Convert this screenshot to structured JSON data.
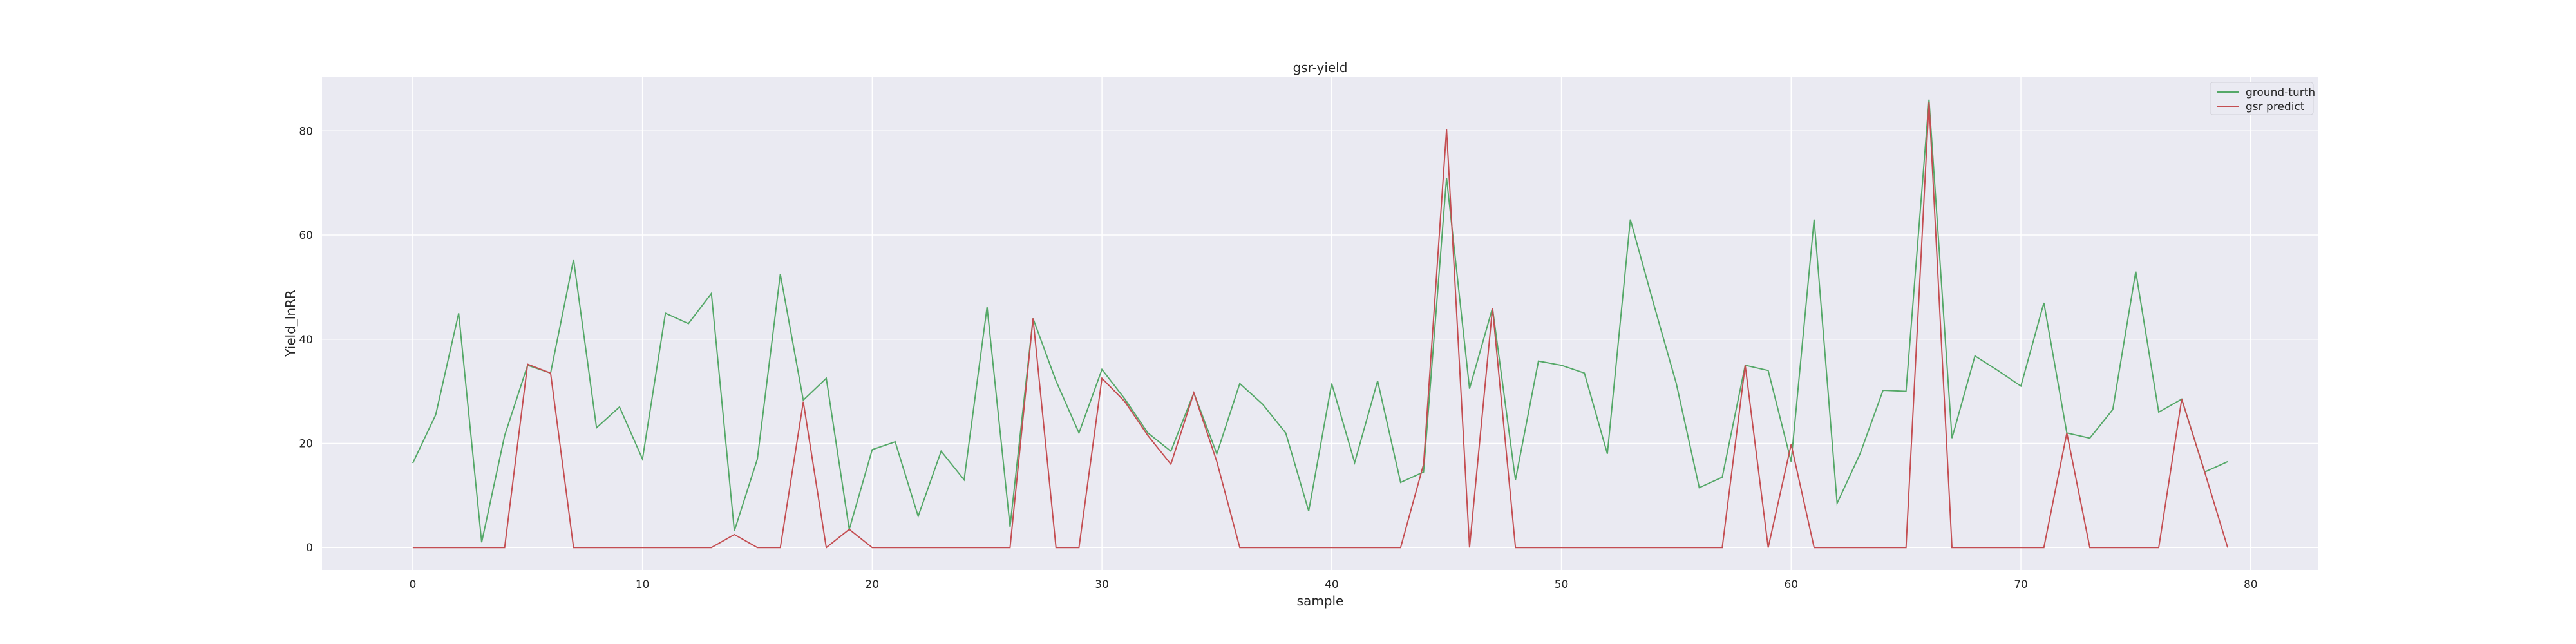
{
  "chart_data": {
    "type": "line",
    "title": "gsr-yield",
    "xlabel": "sample",
    "ylabel": "Yield_lnRR",
    "xlim": [
      -3.95,
      82.95
    ],
    "ylim": [
      -4.3,
      90.3
    ],
    "xticks": [
      0,
      10,
      20,
      30,
      40,
      50,
      60,
      70,
      80
    ],
    "yticks": [
      0,
      20,
      40,
      60,
      80
    ],
    "grid": true,
    "legend": "top-right",
    "background": "#eaeaf2",
    "x": [
      0,
      1,
      2,
      3,
      4,
      5,
      6,
      7,
      8,
      9,
      10,
      11,
      12,
      13,
      14,
      15,
      16,
      17,
      18,
      19,
      20,
      21,
      22,
      23,
      24,
      25,
      26,
      27,
      28,
      29,
      30,
      31,
      32,
      33,
      34,
      35,
      36,
      37,
      38,
      39,
      40,
      41,
      42,
      43,
      44,
      45,
      46,
      47,
      48,
      49,
      50,
      51,
      52,
      53,
      54,
      55,
      56,
      57,
      58,
      59,
      60,
      61,
      62,
      63,
      64,
      65,
      66,
      67,
      68,
      69,
      70,
      71,
      72,
      73,
      74,
      75,
      76,
      77,
      78,
      79
    ],
    "series": [
      {
        "name": "ground-turth",
        "color": "#55a868",
        "values": [
          16.2,
          25.5,
          45.0,
          1.0,
          21.5,
          35.0,
          33.5,
          55.3,
          23.0,
          27.0,
          17.0,
          45.0,
          43.0,
          48.8,
          3.2,
          17.0,
          52.5,
          28.3,
          32.5,
          3.5,
          18.8,
          20.3,
          6.0,
          18.5,
          13.0,
          46.2,
          4.0,
          44.0,
          32.0,
          22.0,
          34.2,
          28.5,
          22.0,
          18.5,
          29.7,
          18.0,
          31.5,
          27.5,
          22.0,
          7.0,
          31.5,
          16.3,
          32.0,
          12.5,
          14.5,
          71.0,
          30.5,
          46.0,
          13.0,
          35.8,
          35.0,
          33.5,
          18.0,
          63.0,
          47.0,
          31.5,
          11.5,
          13.5,
          35.0,
          34.0,
          16.5,
          63.0,
          8.5,
          18.0,
          30.2,
          30.0,
          86.0,
          21.0,
          36.8,
          34.0,
          31.0,
          47.0,
          22.0,
          21.0,
          26.5,
          53.0,
          26.0,
          28.5,
          14.5,
          16.5
        ]
      },
      {
        "name": "gsr predict",
        "color": "#c44e52",
        "values": [
          0,
          0,
          0,
          0,
          0,
          35.2,
          33.5,
          0,
          0,
          0,
          0,
          0,
          0,
          0,
          2.5,
          0,
          0,
          28.0,
          0,
          3.5,
          0,
          0,
          0,
          0,
          0,
          0,
          0,
          44.0,
          0,
          0,
          32.5,
          28.0,
          21.5,
          16.0,
          29.7,
          16.5,
          0,
          0,
          0,
          0,
          0,
          0,
          0,
          0,
          16.0,
          80.3,
          0,
          46.0,
          0,
          0,
          0,
          0,
          0,
          0,
          0,
          0,
          0,
          0,
          35.0,
          0,
          19.8,
          0,
          0,
          0,
          0,
          0,
          85.5,
          0,
          0,
          0,
          0,
          0,
          22.0,
          0,
          0,
          0,
          0,
          28.5,
          14.5,
          0
        ]
      }
    ]
  }
}
